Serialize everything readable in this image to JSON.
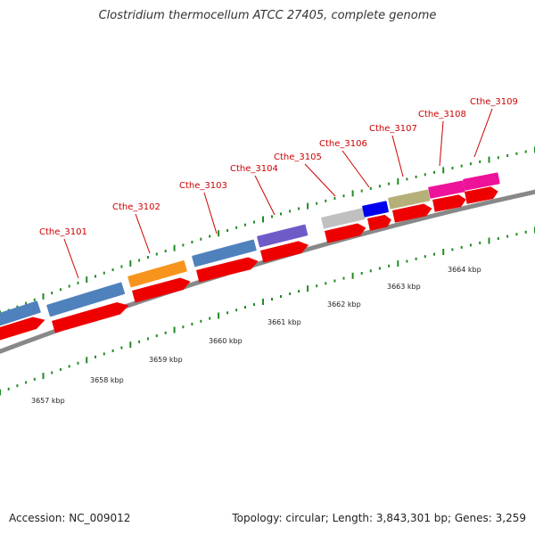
{
  "title": "Clostridium thermocellum ATCC 27405, complete genome",
  "footer": {
    "accession": "Accession: NC_009012",
    "summary": "Topology: circular; Length: 3,843,301 bp; Genes: 3,259"
  },
  "colors": {
    "cds": "#ee0000",
    "backbone": "#888888",
    "ticks": "#228b22",
    "label": "#cc0000"
  },
  "genes": [
    {
      "name": "Cthe_3101",
      "color": "#4f81bd"
    },
    {
      "name": "Cthe_3102",
      "color": "#f7941d"
    },
    {
      "name": "Cthe_3103",
      "color": "#4f81bd"
    },
    {
      "name": "Cthe_3104",
      "color": "#6f5bc8"
    },
    {
      "name": "Cthe_3105",
      "color": "#c0c0c0"
    },
    {
      "name": "Cthe_3106",
      "color": "#0000ee"
    },
    {
      "name": "Cthe_3107",
      "color": "#b5b07a"
    },
    {
      "name": "Cthe_3108",
      "color": "#ee1199"
    },
    {
      "name": "Cthe_3109",
      "color": "#ee1199"
    }
  ],
  "kbp_labels": [
    "3657 kbp",
    "3658 kbp",
    "3659 kbp",
    "3660 kbp",
    "3661 kbp",
    "3662 kbp",
    "3663 kbp",
    "3664 kbp"
  ]
}
